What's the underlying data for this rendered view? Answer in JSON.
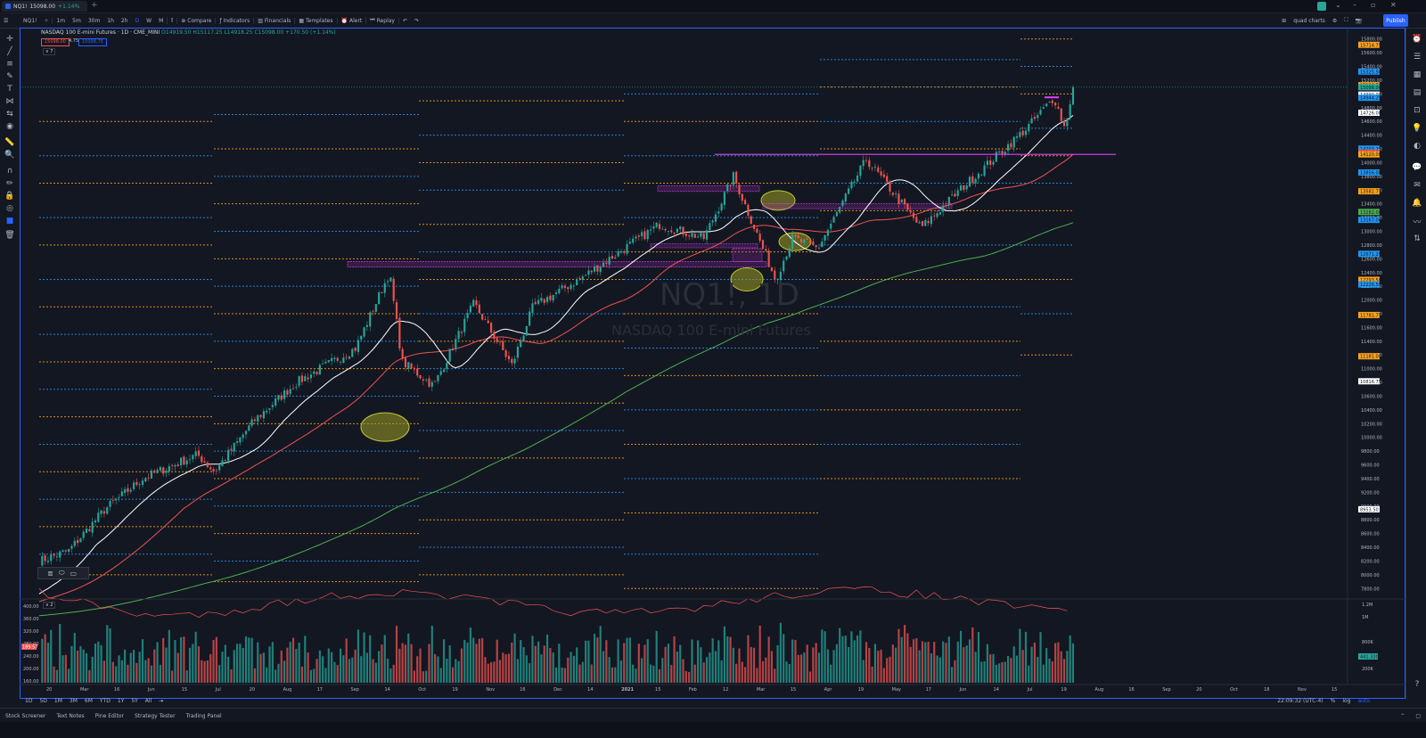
{
  "browser_tab": {
    "symbol": "NQ1!",
    "price": "15098.00",
    "change": "+1.14%",
    "new_tab": "+"
  },
  "toolbar": {
    "symbol": "NQ1!",
    "intervals": [
      "1m",
      "5m",
      "30m",
      "1h",
      "2h",
      "D",
      "W",
      "M"
    ],
    "active_interval": "D",
    "compare": "Compare",
    "indicators": "Indicators",
    "financials": "Financials",
    "templates": "Templates",
    "alert": "Alert",
    "replay": "Replay",
    "layout_name": "quad charts",
    "publish": "Publish"
  },
  "legend": {
    "title": "NASDAQ 100 E-mini Futures · 1D · CME_MINI",
    "ohlc": "O14919.50 H15117.25 L14918.25 C15098.00 +170.50 (+1.14%)",
    "bid": "15098.00",
    "spread": "4.75",
    "ask": "15098.75",
    "collapse": "∨ 7"
  },
  "watermark": {
    "symbol": "NQ1!, 1D",
    "name": "NASDAQ 100 E-mini Futures"
  },
  "price_axis": [
    "15800.00",
    "15600.00",
    "15400.00",
    "15200.00",
    "15000.00",
    "14800.00",
    "14600.00",
    "14400.00",
    "14200.00",
    "14000.00",
    "13800.00",
    "13600.00",
    "13400.00",
    "13200.00",
    "13000.00",
    "12800.00",
    "12600.00",
    "12400.00",
    "12200.00",
    "12000.00",
    "11800.00",
    "11600.00",
    "11400.00",
    "11200.00",
    "11000.00",
    "10800.00",
    "10600.00",
    "10400.00",
    "10200.00",
    "10000.00",
    "9800.00",
    "9600.00",
    "9400.00",
    "9200.00",
    "9000.00",
    "8800.00",
    "8600.00",
    "8400.00",
    "8200.00",
    "8000.00",
    "7800.00"
  ],
  "price_tags": [
    {
      "text": "15714.75",
      "color": "#f7a21b"
    },
    {
      "text": "15325.50",
      "color": "#2196f3"
    },
    {
      "text": "15126.75",
      "color": "#f7a21b"
    },
    {
      "text": "15098.00",
      "color": "#26a69a"
    },
    {
      "text": "14990.00",
      "color": "#ffffff"
    },
    {
      "text": "14944.25",
      "color": "#2196f3"
    },
    {
      "text": "14726.00",
      "color": "#ffffff"
    },
    {
      "text": "14203.25",
      "color": "#2196f3"
    },
    {
      "text": "14146.00",
      "color": "#ef5350"
    },
    {
      "text": "14120.00",
      "color": "#f7a21b"
    },
    {
      "text": "13856.00",
      "color": "#2196f3"
    },
    {
      "text": "13582.75",
      "color": "#f7a21b"
    },
    {
      "text": "13282.00",
      "color": "#4caf50"
    },
    {
      "text": "13167.00",
      "color": "#2196f3"
    },
    {
      "text": "12671.25",
      "color": "#2196f3"
    },
    {
      "text": "12293.50",
      "color": "#f7a21b"
    },
    {
      "text": "12226.50",
      "color": "#2196f3"
    },
    {
      "text": "11781.75",
      "color": "#f7a21b"
    },
    {
      "text": "11181.00",
      "color": "#f7a21b"
    },
    {
      "text": "10816.75",
      "color": "#ffffff"
    },
    {
      "text": "8953.50",
      "color": "#ffffff"
    }
  ],
  "volume_axis": [
    "1.2M",
    "1M",
    "800K",
    "600K",
    "200K"
  ],
  "volume_tag": "441.320K",
  "oscillator_axis": [
    "400.00",
    "360.00",
    "320.00",
    "280.00",
    "240.00",
    "200.00",
    "160.00"
  ],
  "oscillator_tag": "189.57",
  "time_axis": [
    "20",
    "Mar",
    "16",
    "Jun",
    "15",
    "Jul",
    "20",
    "Aug",
    "17",
    "Sep",
    "14",
    "Oct",
    "19",
    "Nov",
    "16",
    "Dec",
    "14",
    "2021",
    "15",
    "Feb",
    "12",
    "Mar",
    "15",
    "Apr",
    "19",
    "May",
    "17",
    "Jun",
    "14",
    "Jul",
    "19",
    "Aug",
    "16",
    "Sep",
    "20",
    "Oct",
    "18",
    "Nov",
    "15"
  ],
  "range_buttons": [
    "1D",
    "5D",
    "1M",
    "3M",
    "6M",
    "YTD",
    "1Y",
    "5Y",
    "All"
  ],
  "clock": "22:09:32 (UTC-4)",
  "axis_opts": [
    "%",
    "log",
    "auto"
  ],
  "bottom_tabs": [
    "Stock Screener",
    "Text Notes",
    "Pine Editor",
    "Strategy Tester",
    "Trading Panel"
  ],
  "chart_data": {
    "type": "candlestick",
    "symbol": "NQ1!",
    "interval": "1D",
    "price_range": [
      7700,
      15900
    ],
    "moving_averages": [
      {
        "color": "#ffffff",
        "end_value": 14726
      },
      {
        "color": "#ef5350",
        "end_value": 14146
      },
      {
        "color": "#4caf50",
        "end_value": 13282
      }
    ],
    "horizontal_lines": [
      {
        "value": 14120,
        "color": "#e040fb"
      }
    ],
    "anchors": [
      {
        "date": "2020-03-20",
        "close": 8200
      },
      {
        "date": "2020-04-03",
        "close": 8350
      },
      {
        "date": "2020-04-20",
        "close": 8950
      },
      {
        "date": "2020-05-08",
        "close": 9400
      },
      {
        "date": "2020-06-03",
        "close": 9750
      },
      {
        "date": "2020-06-11",
        "close": 9500
      },
      {
        "date": "2020-06-30",
        "close": 10250
      },
      {
        "date": "2020-07-20",
        "close": 10800
      },
      {
        "date": "2020-08-17",
        "close": 11300
      },
      {
        "date": "2020-09-02",
        "close": 12400
      },
      {
        "date": "2020-09-08",
        "close": 11100
      },
      {
        "date": "2020-09-23",
        "close": 10750
      },
      {
        "date": "2020-10-12",
        "close": 11950
      },
      {
        "date": "2020-10-30",
        "close": 11050
      },
      {
        "date": "2020-11-09",
        "close": 11900
      },
      {
        "date": "2020-12-01",
        "close": 12300
      },
      {
        "date": "2021-01-08",
        "close": 13100
      },
      {
        "date": "2021-01-29",
        "close": 12900
      },
      {
        "date": "2021-02-12",
        "close": 13800
      },
      {
        "date": "2021-03-04",
        "close": 12300
      },
      {
        "date": "2021-03-12",
        "close": 12900
      },
      {
        "date": "2021-03-24",
        "close": 12750
      },
      {
        "date": "2021-04-16",
        "close": 14050
      },
      {
        "date": "2021-05-12",
        "close": 13050
      },
      {
        "date": "2021-06-01",
        "close": 13650
      },
      {
        "date": "2021-07-01",
        "close": 14500
      },
      {
        "date": "2021-07-14",
        "close": 14950
      },
      {
        "date": "2021-07-19",
        "close": 14500
      },
      {
        "date": "2021-07-23",
        "close": 15098
      }
    ]
  }
}
